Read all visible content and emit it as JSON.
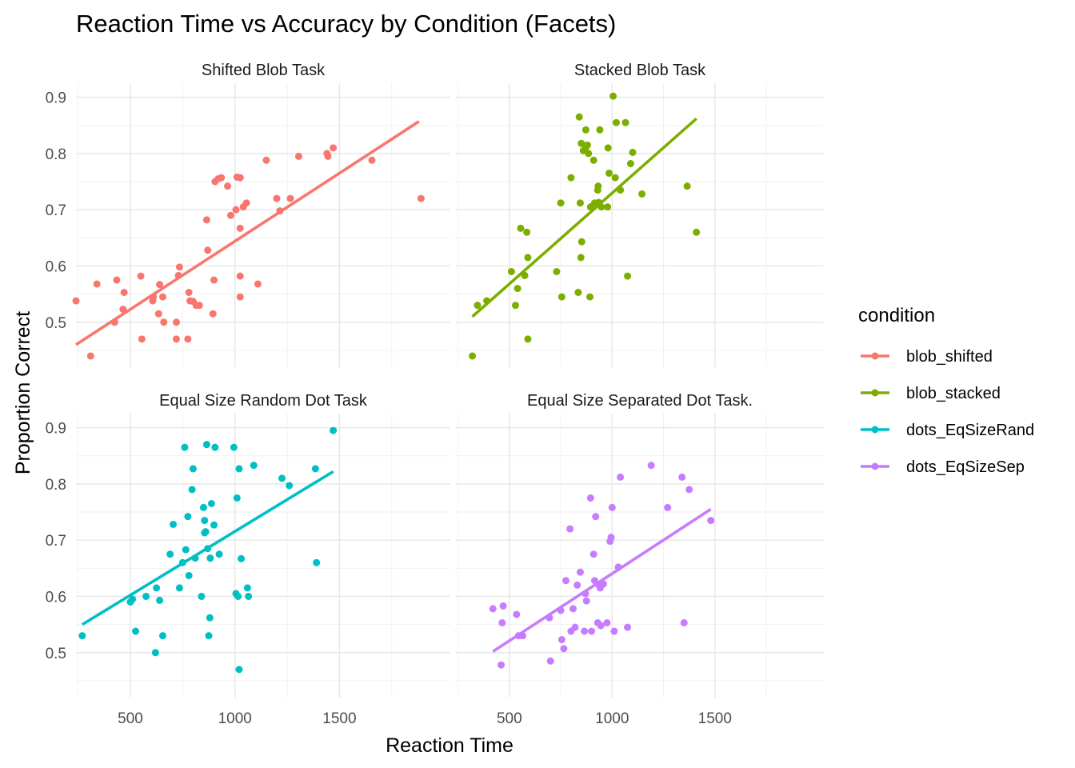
{
  "chart_data": {
    "type": "scatter",
    "title": "Reaction Time vs Accuracy by Condition (Facets)",
    "xlabel": "Reaction Time",
    "ylabel": "Proportion Correct",
    "xlim": [
      240,
      2030
    ],
    "ylim": [
      0.42,
      0.925
    ],
    "x_ticks": [
      500,
      1000,
      1500
    ],
    "y_ticks": [
      0.5,
      0.6,
      0.7,
      0.8,
      0.9
    ],
    "grid": true,
    "legend": {
      "title": "condition",
      "position": "right",
      "entries": [
        "blob_shifted",
        "blob_stacked",
        "dots_EqSizeRand",
        "dots_EqSizeSep"
      ]
    },
    "panels": [
      {
        "strip": "Shifted Blob Task",
        "series": "blob_shifted",
        "color": "#F8766D",
        "fit": [
          [
            240,
            0.46
          ],
          [
            1880,
            0.857
          ]
        ],
        "points": [
          [
            240,
            0.538
          ],
          [
            310,
            0.44
          ],
          [
            340,
            0.568
          ],
          [
            425,
            0.5
          ],
          [
            435,
            0.575
          ],
          [
            465,
            0.523
          ],
          [
            470,
            0.553
          ],
          [
            550,
            0.582
          ],
          [
            555,
            0.47
          ],
          [
            607,
            0.538
          ],
          [
            610,
            0.545
          ],
          [
            635,
            0.515
          ],
          [
            640,
            0.567
          ],
          [
            655,
            0.545
          ],
          [
            660,
            0.5
          ],
          [
            720,
            0.47
          ],
          [
            720,
            0.5
          ],
          [
            730,
            0.583
          ],
          [
            735,
            0.598
          ],
          [
            775,
            0.47
          ],
          [
            780,
            0.553
          ],
          [
            785,
            0.538
          ],
          [
            800,
            0.537
          ],
          [
            815,
            0.53
          ],
          [
            830,
            0.53
          ],
          [
            865,
            0.682
          ],
          [
            870,
            0.628
          ],
          [
            895,
            0.515
          ],
          [
            900,
            0.575
          ],
          [
            905,
            0.75
          ],
          [
            920,
            0.755
          ],
          [
            935,
            0.757
          ],
          [
            965,
            0.742
          ],
          [
            980,
            0.69
          ],
          [
            1005,
            0.7
          ],
          [
            1010,
            0.758
          ],
          [
            1025,
            0.667
          ],
          [
            1025,
            0.757
          ],
          [
            1025,
            0.545
          ],
          [
            1025,
            0.582
          ],
          [
            1040,
            0.705
          ],
          [
            1055,
            0.712
          ],
          [
            1110,
            0.568
          ],
          [
            1150,
            0.788
          ],
          [
            1200,
            0.72
          ],
          [
            1215,
            0.698
          ],
          [
            1265,
            0.72
          ],
          [
            1305,
            0.795
          ],
          [
            1440,
            0.8
          ],
          [
            1445,
            0.795
          ],
          [
            1470,
            0.81
          ],
          [
            1655,
            0.788
          ],
          [
            1890,
            0.72
          ]
        ]
      },
      {
        "strip": "Stacked Blob Task",
        "series": "blob_stacked",
        "color": "#7CAE00",
        "fit": [
          [
            320,
            0.51
          ],
          [
            1410,
            0.862
          ]
        ],
        "points": [
          [
            320,
            0.44
          ],
          [
            345,
            0.53
          ],
          [
            390,
            0.538
          ],
          [
            510,
            0.59
          ],
          [
            530,
            0.53
          ],
          [
            540,
            0.56
          ],
          [
            555,
            0.667
          ],
          [
            575,
            0.583
          ],
          [
            585,
            0.66
          ],
          [
            590,
            0.615
          ],
          [
            590,
            0.47
          ],
          [
            730,
            0.59
          ],
          [
            750,
            0.712
          ],
          [
            755,
            0.545
          ],
          [
            800,
            0.757
          ],
          [
            835,
            0.553
          ],
          [
            840,
            0.865
          ],
          [
            845,
            0.712
          ],
          [
            848,
            0.615
          ],
          [
            850,
            0.818
          ],
          [
            852,
            0.643
          ],
          [
            860,
            0.805
          ],
          [
            870,
            0.81
          ],
          [
            872,
            0.842
          ],
          [
            880,
            0.815
          ],
          [
            885,
            0.8
          ],
          [
            892,
            0.545
          ],
          [
            895,
            0.705
          ],
          [
            910,
            0.788
          ],
          [
            915,
            0.712
          ],
          [
            930,
            0.735
          ],
          [
            932,
            0.742
          ],
          [
            935,
            0.713
          ],
          [
            940,
            0.842
          ],
          [
            948,
            0.705
          ],
          [
            978,
            0.705
          ],
          [
            980,
            0.81
          ],
          [
            985,
            0.765
          ],
          [
            1005,
            0.902
          ],
          [
            1015,
            0.757
          ],
          [
            1020,
            0.855
          ],
          [
            1040,
            0.735
          ],
          [
            1065,
            0.855
          ],
          [
            1075,
            0.582
          ],
          [
            1090,
            0.782
          ],
          [
            1100,
            0.802
          ],
          [
            1145,
            0.728
          ],
          [
            1365,
            0.742
          ],
          [
            1410,
            0.66
          ]
        ]
      },
      {
        "strip": "Equal Size Random Dot Task",
        "series": "dots_EqSizeRand",
        "color": "#00BFC4",
        "fit": [
          [
            270,
            0.55
          ],
          [
            1470,
            0.822
          ]
        ],
        "points": [
          [
            270,
            0.53
          ],
          [
            500,
            0.59
          ],
          [
            510,
            0.595
          ],
          [
            525,
            0.538
          ],
          [
            575,
            0.6
          ],
          [
            620,
            0.5
          ],
          [
            625,
            0.615
          ],
          [
            640,
            0.593
          ],
          [
            655,
            0.53
          ],
          [
            690,
            0.675
          ],
          [
            705,
            0.728
          ],
          [
            735,
            0.615
          ],
          [
            750,
            0.66
          ],
          [
            760,
            0.865
          ],
          [
            765,
            0.683
          ],
          [
            775,
            0.742
          ],
          [
            780,
            0.637
          ],
          [
            795,
            0.79
          ],
          [
            800,
            0.827
          ],
          [
            810,
            0.668
          ],
          [
            840,
            0.6
          ],
          [
            850,
            0.758
          ],
          [
            855,
            0.735
          ],
          [
            855,
            0.713
          ],
          [
            860,
            0.715
          ],
          [
            865,
            0.87
          ],
          [
            870,
            0.685
          ],
          [
            875,
            0.53
          ],
          [
            880,
            0.562
          ],
          [
            882,
            0.668
          ],
          [
            888,
            0.765
          ],
          [
            900,
            0.727
          ],
          [
            905,
            0.865
          ],
          [
            925,
            0.675
          ],
          [
            995,
            0.865
          ],
          [
            1005,
            0.605
          ],
          [
            1010,
            0.775
          ],
          [
            1015,
            0.6
          ],
          [
            1020,
            0.827
          ],
          [
            1020,
            0.47
          ],
          [
            1030,
            0.667
          ],
          [
            1060,
            0.615
          ],
          [
            1065,
            0.6
          ],
          [
            1090,
            0.833
          ],
          [
            1225,
            0.81
          ],
          [
            1260,
            0.797
          ],
          [
            1385,
            0.827
          ],
          [
            1390,
            0.66
          ],
          [
            1470,
            0.895
          ]
        ]
      },
      {
        "strip": "Equal Size Separated Dot Task.",
        "series": "dots_EqSizeSep",
        "color": "#C77CFF",
        "fit": [
          [
            420,
            0.502
          ],
          [
            1480,
            0.755
          ]
        ],
        "points": [
          [
            420,
            0.578
          ],
          [
            460,
            0.478
          ],
          [
            465,
            0.553
          ],
          [
            470,
            0.583
          ],
          [
            535,
            0.568
          ],
          [
            545,
            0.53
          ],
          [
            565,
            0.53
          ],
          [
            695,
            0.562
          ],
          [
            700,
            0.485
          ],
          [
            750,
            0.575
          ],
          [
            755,
            0.523
          ],
          [
            765,
            0.507
          ],
          [
            775,
            0.628
          ],
          [
            795,
            0.72
          ],
          [
            800,
            0.538
          ],
          [
            810,
            0.578
          ],
          [
            820,
            0.545
          ],
          [
            830,
            0.62
          ],
          [
            845,
            0.643
          ],
          [
            865,
            0.538
          ],
          [
            870,
            0.605
          ],
          [
            875,
            0.592
          ],
          [
            895,
            0.775
          ],
          [
            900,
            0.538
          ],
          [
            910,
            0.675
          ],
          [
            915,
            0.628
          ],
          [
            920,
            0.742
          ],
          [
            930,
            0.553
          ],
          [
            935,
            0.62
          ],
          [
            942,
            0.615
          ],
          [
            945,
            0.548
          ],
          [
            958,
            0.622
          ],
          [
            975,
            0.553
          ],
          [
            990,
            0.698
          ],
          [
            995,
            0.705
          ],
          [
            1000,
            0.758
          ],
          [
            1010,
            0.538
          ],
          [
            1030,
            0.652
          ],
          [
            1040,
            0.812
          ],
          [
            1075,
            0.545
          ],
          [
            1190,
            0.833
          ],
          [
            1270,
            0.758
          ],
          [
            1340,
            0.812
          ],
          [
            1350,
            0.553
          ],
          [
            1375,
            0.79
          ],
          [
            1480,
            0.735
          ]
        ]
      }
    ]
  }
}
